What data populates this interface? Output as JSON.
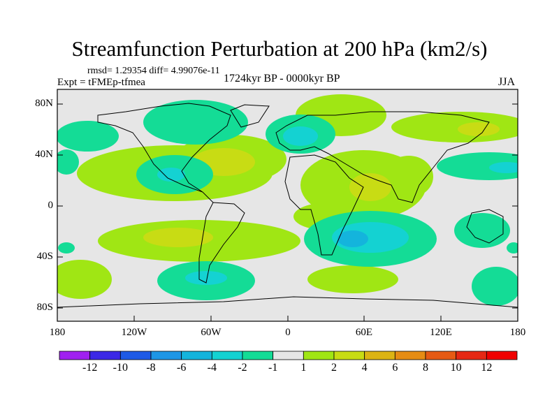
{
  "title": "Streamfunction Perturbation at 200 hPa (km2/s)",
  "stats": "rmsd= 1.29354 diff= 4.99076e-11",
  "experiment": "Expt = tFMEp-tfmea",
  "period": "1724kyr BP - 0000kyr BP",
  "season": "JJA",
  "map": {
    "lat_ticks": [
      "80N",
      "40N",
      "0",
      "40S",
      "80S"
    ],
    "lon_ticks": [
      "180",
      "120W",
      "60W",
      "0",
      "60E",
      "120E",
      "180"
    ],
    "background_color": "#e6e6e6"
  },
  "colorbar": {
    "levels": [
      "-12",
      "-10",
      "-8",
      "-6",
      "-4",
      "-2",
      "-1",
      "1",
      "2",
      "4",
      "6",
      "8",
      "10",
      "12"
    ],
    "colors": [
      "#a020f0",
      "#3c28e6",
      "#1e5ae6",
      "#1e96e6",
      "#14b4dc",
      "#14d2d2",
      "#14dc96",
      "#e6e6e6",
      "#a0e614",
      "#c8dc14",
      "#dcb414",
      "#e68c14",
      "#e65a14",
      "#e62814",
      "#f00000"
    ]
  }
}
